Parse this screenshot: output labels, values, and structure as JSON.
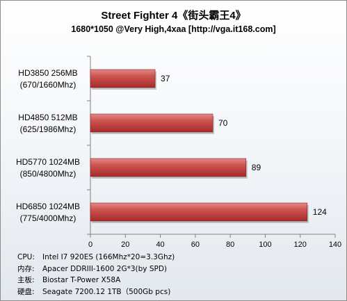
{
  "chart_data": {
    "type": "bar",
    "orientation": "horizontal",
    "title": "Street Fighter 4《街头霸王4》",
    "subtitle": "1680*1050 @Very High,4xaa [http://vga.it168.com]",
    "categories": [
      [
        "HD3850 256MB",
        "(670/1660Mhz)"
      ],
      [
        "HD4850 512MB",
        "(625/1986Mhz)"
      ],
      [
        "HD5770 1024MB",
        "(850/4800Mhz)"
      ],
      [
        "HD6850 1024MB",
        "(775/4000Mhz)"
      ]
    ],
    "values": [
      37,
      70,
      89,
      124
    ],
    "xlim": [
      0,
      140
    ],
    "xticks": [
      0,
      20,
      40,
      60,
      80,
      100,
      120,
      140
    ],
    "grid": false,
    "legend": "none",
    "bar_color": "#c0403f"
  },
  "notes": [
    {
      "label": "CPU:",
      "value": "Intel I7 920ES (166Mhz*20=3.3Ghz)"
    },
    {
      "label": "内存:",
      "value": "Apacer DDRIII-1600 2G*3(by SPD)"
    },
    {
      "label": "主板:",
      "value": "Biostar T-Power X58A"
    },
    {
      "label": "硬盘:",
      "value": "Seagate 7200.12 1TB（500Gb pcs)"
    }
  ]
}
